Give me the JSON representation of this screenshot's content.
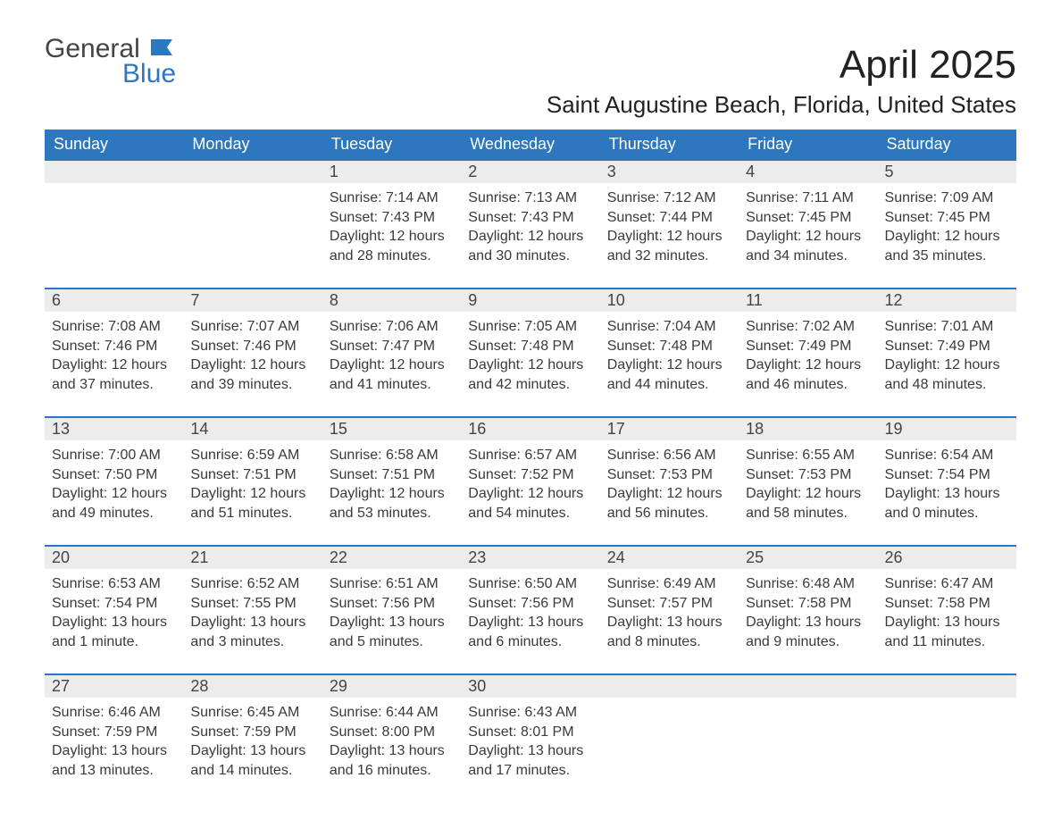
{
  "logo": {
    "general": "General",
    "blue": "Blue"
  },
  "title": "April 2025",
  "location": "Saint Augustine Beach, Florida, United States",
  "colors": {
    "header_bg": "#2d77be",
    "header_text": "#ffffff",
    "daynum_bg": "#ececec",
    "body_text": "#3a3a3a",
    "rule": "#2d77be"
  },
  "day_names": [
    "Sunday",
    "Monday",
    "Tuesday",
    "Wednesday",
    "Thursday",
    "Friday",
    "Saturday"
  ],
  "weeks": [
    [
      null,
      null,
      {
        "n": "1",
        "sr": "7:14 AM",
        "ss": "7:43 PM",
        "dl": "12 hours and 28 minutes."
      },
      {
        "n": "2",
        "sr": "7:13 AM",
        "ss": "7:43 PM",
        "dl": "12 hours and 30 minutes."
      },
      {
        "n": "3",
        "sr": "7:12 AM",
        "ss": "7:44 PM",
        "dl": "12 hours and 32 minutes."
      },
      {
        "n": "4",
        "sr": "7:11 AM",
        "ss": "7:45 PM",
        "dl": "12 hours and 34 minutes."
      },
      {
        "n": "5",
        "sr": "7:09 AM",
        "ss": "7:45 PM",
        "dl": "12 hours and 35 minutes."
      }
    ],
    [
      {
        "n": "6",
        "sr": "7:08 AM",
        "ss": "7:46 PM",
        "dl": "12 hours and 37 minutes."
      },
      {
        "n": "7",
        "sr": "7:07 AM",
        "ss": "7:46 PM",
        "dl": "12 hours and 39 minutes."
      },
      {
        "n": "8",
        "sr": "7:06 AM",
        "ss": "7:47 PM",
        "dl": "12 hours and 41 minutes."
      },
      {
        "n": "9",
        "sr": "7:05 AM",
        "ss": "7:48 PM",
        "dl": "12 hours and 42 minutes."
      },
      {
        "n": "10",
        "sr": "7:04 AM",
        "ss": "7:48 PM",
        "dl": "12 hours and 44 minutes."
      },
      {
        "n": "11",
        "sr": "7:02 AM",
        "ss": "7:49 PM",
        "dl": "12 hours and 46 minutes."
      },
      {
        "n": "12",
        "sr": "7:01 AM",
        "ss": "7:49 PM",
        "dl": "12 hours and 48 minutes."
      }
    ],
    [
      {
        "n": "13",
        "sr": "7:00 AM",
        "ss": "7:50 PM",
        "dl": "12 hours and 49 minutes."
      },
      {
        "n": "14",
        "sr": "6:59 AM",
        "ss": "7:51 PM",
        "dl": "12 hours and 51 minutes."
      },
      {
        "n": "15",
        "sr": "6:58 AM",
        "ss": "7:51 PM",
        "dl": "12 hours and 53 minutes."
      },
      {
        "n": "16",
        "sr": "6:57 AM",
        "ss": "7:52 PM",
        "dl": "12 hours and 54 minutes."
      },
      {
        "n": "17",
        "sr": "6:56 AM",
        "ss": "7:53 PM",
        "dl": "12 hours and 56 minutes."
      },
      {
        "n": "18",
        "sr": "6:55 AM",
        "ss": "7:53 PM",
        "dl": "12 hours and 58 minutes."
      },
      {
        "n": "19",
        "sr": "6:54 AM",
        "ss": "7:54 PM",
        "dl": "13 hours and 0 minutes."
      }
    ],
    [
      {
        "n": "20",
        "sr": "6:53 AM",
        "ss": "7:54 PM",
        "dl": "13 hours and 1 minute."
      },
      {
        "n": "21",
        "sr": "6:52 AM",
        "ss": "7:55 PM",
        "dl": "13 hours and 3 minutes."
      },
      {
        "n": "22",
        "sr": "6:51 AM",
        "ss": "7:56 PM",
        "dl": "13 hours and 5 minutes."
      },
      {
        "n": "23",
        "sr": "6:50 AM",
        "ss": "7:56 PM",
        "dl": "13 hours and 6 minutes."
      },
      {
        "n": "24",
        "sr": "6:49 AM",
        "ss": "7:57 PM",
        "dl": "13 hours and 8 minutes."
      },
      {
        "n": "25",
        "sr": "6:48 AM",
        "ss": "7:58 PM",
        "dl": "13 hours and 9 minutes."
      },
      {
        "n": "26",
        "sr": "6:47 AM",
        "ss": "7:58 PM",
        "dl": "13 hours and 11 minutes."
      }
    ],
    [
      {
        "n": "27",
        "sr": "6:46 AM",
        "ss": "7:59 PM",
        "dl": "13 hours and 13 minutes."
      },
      {
        "n": "28",
        "sr": "6:45 AM",
        "ss": "7:59 PM",
        "dl": "13 hours and 14 minutes."
      },
      {
        "n": "29",
        "sr": "6:44 AM",
        "ss": "8:00 PM",
        "dl": "13 hours and 16 minutes."
      },
      {
        "n": "30",
        "sr": "6:43 AM",
        "ss": "8:01 PM",
        "dl": "13 hours and 17 minutes."
      },
      null,
      null,
      null
    ]
  ],
  "labels": {
    "sunrise": "Sunrise: ",
    "sunset": "Sunset: ",
    "daylight": "Daylight: "
  }
}
